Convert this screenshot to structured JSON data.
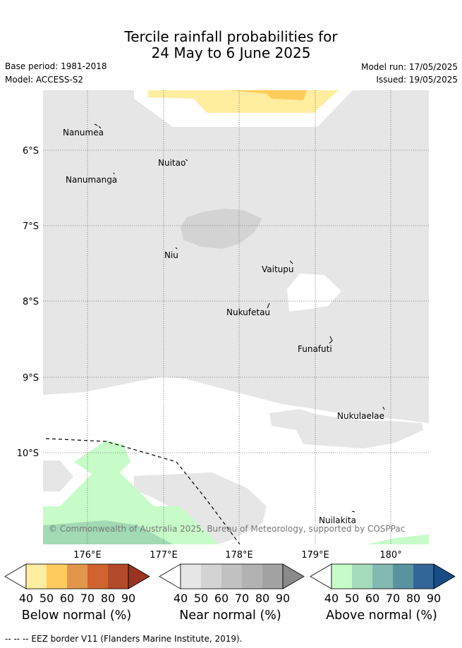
{
  "header": {
    "title_line1": "Tercile rainfall probabilities for",
    "title_line2": "24 May to 6 June 2025",
    "base_period": "Base period: 1981-2018",
    "model": "Model: ACCESS-S2",
    "model_run": "Model run: 17/05/2025",
    "issued": "Issued: 19/05/2025"
  },
  "map": {
    "lat_labels": [
      "6°S",
      "7°S",
      "8°S",
      "9°S",
      "10°S"
    ],
    "lon_labels": [
      "176°E",
      "177°E",
      "178°E",
      "179°E",
      "180°"
    ],
    "islands": [
      "Nanumea",
      "Nuitao",
      "Nanumanga",
      "Niu",
      "Vaitupu",
      "Nukufetau",
      "Funafuti",
      "Nukulaelae",
      "Nuilakita"
    ],
    "copyright": "© Commonwealth of Australia 2025, Bureau of Meteorology, supported by COSPPac",
    "colors": {
      "background_near": "#e6e6e6",
      "near_50": "#d3d3d3",
      "below_40": "#ffeda0",
      "below_50": "#fecc5c",
      "above_40": "#c7fcc9",
      "above_50": "#a1dab4"
    }
  },
  "colorbars": [
    {
      "label": "Below normal (%)",
      "ticks": [
        "40",
        "50",
        "60",
        "70",
        "80",
        "90"
      ],
      "colors": [
        "#ffffff",
        "#ffeda0",
        "#fecc5c",
        "#e2964b",
        "#d0632e",
        "#b34a29",
        "#9b3322"
      ]
    },
    {
      "label": "Near normal (%)",
      "ticks": [
        "40",
        "50",
        "60",
        "70",
        "80",
        "90"
      ],
      "colors": [
        "#ffffff",
        "#e6e6e6",
        "#d3d3d3",
        "#c1c1c1",
        "#b2b2b2",
        "#a3a3a3",
        "#8a8a8a"
      ]
    },
    {
      "label": "Above normal (%)",
      "ticks": [
        "40",
        "50",
        "60",
        "70",
        "80",
        "90"
      ],
      "colors": [
        "#ffffff",
        "#c7fcc9",
        "#a4dbbb",
        "#82b9b1",
        "#5993a0",
        "#32669a",
        "#184c86"
      ]
    }
  ],
  "footnote": "--  --  -- EEZ border V11 (Flanders Marine Institute, 2019)."
}
